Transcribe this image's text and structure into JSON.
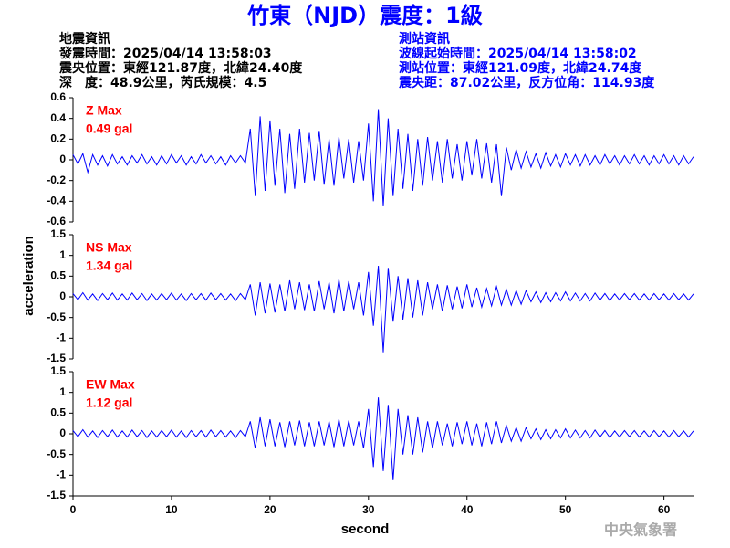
{
  "header": {
    "title": "竹東（NJD）震度：1級",
    "left": [
      "地震資訊",
      "發震時間：2025/04/14 13:58:03",
      "震央位置：東經121.87度，北緯24.40度",
      "深　度：48.9公里，芮氏規模：4.5"
    ],
    "right": [
      "測站資訊",
      "波線起始時間：2025/04/14 13:58:02",
      "測站位置：東經121.09度，北緯24.74度",
      "震央距：87.02公里，反方位角：114.93度"
    ],
    "watermark": "中央氣象署"
  },
  "chart_data": {
    "type": "line",
    "xlabel": "second",
    "ylabel": "acceleration",
    "xlim": [
      0,
      63
    ],
    "xticks": [
      0,
      10,
      20,
      30,
      40,
      50,
      60
    ],
    "x": [
      0,
      0.5,
      1,
      1.5,
      2,
      2.5,
      3,
      3.5,
      4,
      4.5,
      5,
      5.5,
      6,
      6.5,
      7,
      7.5,
      8,
      8.5,
      9,
      9.5,
      10,
      10.5,
      11,
      11.5,
      12,
      12.5,
      13,
      13.5,
      14,
      14.5,
      15,
      15.5,
      16,
      16.5,
      17,
      17.5,
      18,
      18.5,
      19,
      19.5,
      20,
      20.5,
      21,
      21.5,
      22,
      22.5,
      23,
      23.5,
      24,
      24.5,
      25,
      25.5,
      26,
      26.5,
      27,
      27.5,
      28,
      28.5,
      29,
      29.5,
      30,
      30.5,
      31,
      31.5,
      32,
      32.5,
      33,
      33.5,
      34,
      34.5,
      35,
      35.5,
      36,
      36.5,
      37,
      37.5,
      38,
      38.5,
      39,
      39.5,
      40,
      40.5,
      41,
      41.5,
      42,
      42.5,
      43,
      43.5,
      44,
      44.5,
      45,
      45.5,
      46,
      46.5,
      47,
      47.5,
      48,
      48.5,
      49,
      49.5,
      50,
      50.5,
      51,
      51.5,
      52,
      52.5,
      53,
      53.5,
      54,
      54.5,
      55,
      55.5,
      56,
      56.5,
      57,
      57.5,
      58,
      58.5,
      59,
      59.5,
      60,
      60.5,
      61,
      61.5,
      62,
      62.5,
      63
    ],
    "panels": [
      {
        "label": "Z Max",
        "max_label": "0.49 gal",
        "color": "#0000ff",
        "label_color": "#ff0000",
        "ylim": [
          -0.6,
          0.6
        ],
        "yticks": [
          -0.6,
          -0.4,
          -0.2,
          0,
          0.2,
          0.4,
          0.6
        ],
        "values": [
          0.05,
          -0.04,
          0.06,
          -0.12,
          0.05,
          -0.05,
          0.04,
          -0.06,
          0.05,
          -0.04,
          0.03,
          -0.05,
          0.04,
          -0.03,
          0.05,
          -0.04,
          0.03,
          -0.05,
          0.04,
          -0.04,
          0.05,
          -0.03,
          0.04,
          -0.05,
          0.03,
          -0.04,
          0.05,
          -0.03,
          0.04,
          -0.04,
          0.03,
          -0.05,
          0.04,
          -0.03,
          0.04,
          -0.03,
          0.3,
          -0.35,
          0.42,
          -0.3,
          0.38,
          -0.25,
          0.3,
          -0.32,
          0.25,
          -0.28,
          0.3,
          -0.22,
          0.26,
          -0.2,
          0.28,
          -0.24,
          0.2,
          -0.25,
          0.22,
          -0.18,
          0.2,
          -0.22,
          0.18,
          -0.2,
          0.35,
          -0.4,
          0.49,
          -0.45,
          0.4,
          -0.35,
          0.3,
          -0.28,
          0.25,
          -0.3,
          0.2,
          -0.25,
          0.22,
          -0.2,
          0.18,
          -0.22,
          0.2,
          -0.18,
          0.15,
          -0.2,
          0.18,
          -0.15,
          0.2,
          -0.18,
          0.16,
          -0.22,
          0.15,
          -0.35,
          0.12,
          -0.1,
          0.1,
          -0.08,
          0.08,
          -0.07,
          0.06,
          -0.08,
          0.07,
          -0.06,
          0.05,
          -0.07,
          0.06,
          -0.05,
          0.05,
          -0.06,
          0.05,
          -0.05,
          0.04,
          -0.05,
          0.05,
          -0.04,
          0.04,
          -0.05,
          0.04,
          -0.04,
          0.05,
          -0.04,
          0.04,
          -0.05,
          0.04,
          -0.04,
          0.05,
          -0.04,
          0.04,
          -0.05,
          0.04,
          -0.04,
          0.03
        ]
      },
      {
        "label": "NS Max",
        "max_label": "1.34 gal",
        "color": "#0000ff",
        "label_color": "#ff0000",
        "ylim": [
          -1.5,
          1.5
        ],
        "yticks": [
          -1.5,
          -1,
          -0.5,
          0,
          0.5,
          1,
          1.5
        ],
        "values": [
          0.08,
          -0.07,
          0.1,
          -0.08,
          0.07,
          -0.09,
          0.08,
          -0.07,
          0.09,
          -0.08,
          0.07,
          -0.08,
          0.09,
          -0.07,
          0.08,
          -0.09,
          0.07,
          -0.08,
          0.08,
          -0.07,
          0.09,
          -0.08,
          0.07,
          -0.09,
          0.08,
          -0.07,
          0.08,
          -0.08,
          0.09,
          -0.07,
          0.08,
          -0.08,
          0.07,
          -0.09,
          0.08,
          -0.07,
          0.3,
          -0.45,
          0.35,
          -0.4,
          0.32,
          -0.38,
          0.3,
          -0.35,
          0.4,
          -0.3,
          0.35,
          -0.32,
          0.3,
          -0.35,
          0.38,
          -0.3,
          0.35,
          -0.4,
          0.42,
          -0.35,
          0.38,
          -0.3,
          0.35,
          -0.45,
          0.6,
          -0.7,
          0.75,
          -1.34,
          0.7,
          -0.6,
          0.5,
          -0.55,
          0.45,
          -0.5,
          0.4,
          -0.45,
          0.35,
          -0.3,
          0.3,
          -0.35,
          0.28,
          -0.3,
          0.25,
          -0.28,
          0.3,
          -0.25,
          0.22,
          -0.25,
          0.2,
          -0.22,
          0.25,
          -0.2,
          0.18,
          -0.2,
          0.15,
          -0.18,
          0.15,
          -0.12,
          0.12,
          -0.14,
          0.1,
          -0.12,
          0.1,
          -0.1,
          0.12,
          -0.1,
          0.09,
          -0.1,
          0.08,
          -0.1,
          0.09,
          -0.08,
          0.08,
          -0.09,
          0.07,
          -0.08,
          0.08,
          -0.07,
          0.08,
          -0.08,
          0.07,
          -0.08,
          0.08,
          -0.07,
          0.07,
          -0.08,
          0.08,
          -0.07,
          0.07,
          -0.08,
          0.07
        ]
      },
      {
        "label": "EW Max",
        "max_label": "1.12 gal",
        "color": "#0000ff",
        "label_color": "#ff0000",
        "ylim": [
          -1.5,
          1.5
        ],
        "yticks": [
          -1.5,
          -1,
          -0.5,
          0,
          0.5,
          1,
          1.5
        ],
        "values": [
          0.08,
          -0.07,
          0.1,
          -0.08,
          0.07,
          -0.09,
          0.08,
          -0.07,
          0.09,
          -0.08,
          0.07,
          -0.08,
          0.09,
          -0.07,
          0.08,
          -0.09,
          0.07,
          -0.08,
          0.08,
          -0.07,
          0.09,
          -0.08,
          0.07,
          -0.09,
          0.08,
          -0.07,
          0.08,
          -0.08,
          0.09,
          -0.07,
          0.08,
          -0.08,
          0.07,
          -0.09,
          0.08,
          -0.07,
          0.3,
          -0.35,
          0.4,
          -0.3,
          0.35,
          -0.3,
          0.28,
          -0.32,
          0.3,
          -0.28,
          0.32,
          -0.3,
          0.28,
          -0.3,
          0.3,
          -0.28,
          0.3,
          -0.32,
          0.35,
          -0.3,
          0.32,
          -0.28,
          0.3,
          -0.35,
          0.6,
          -0.8,
          0.88,
          -0.9,
          0.7,
          -1.12,
          0.6,
          -0.5,
          0.45,
          -0.5,
          0.4,
          -0.45,
          0.3,
          -0.35,
          0.3,
          -0.28,
          0.25,
          -0.3,
          0.28,
          -0.25,
          0.3,
          -0.28,
          0.25,
          -0.3,
          0.28,
          -0.25,
          0.3,
          -0.22,
          0.2,
          -0.18,
          0.15,
          -0.18,
          0.15,
          -0.12,
          0.12,
          -0.14,
          0.1,
          -0.12,
          0.1,
          -0.1,
          0.12,
          -0.1,
          0.09,
          -0.1,
          0.08,
          -0.1,
          0.09,
          -0.08,
          0.08,
          -0.09,
          0.07,
          -0.08,
          0.08,
          -0.07,
          0.08,
          -0.08,
          0.07,
          -0.08,
          0.08,
          -0.07,
          0.07,
          -0.08,
          0.08,
          -0.07,
          0.07,
          -0.08,
          0.07
        ]
      }
    ]
  }
}
